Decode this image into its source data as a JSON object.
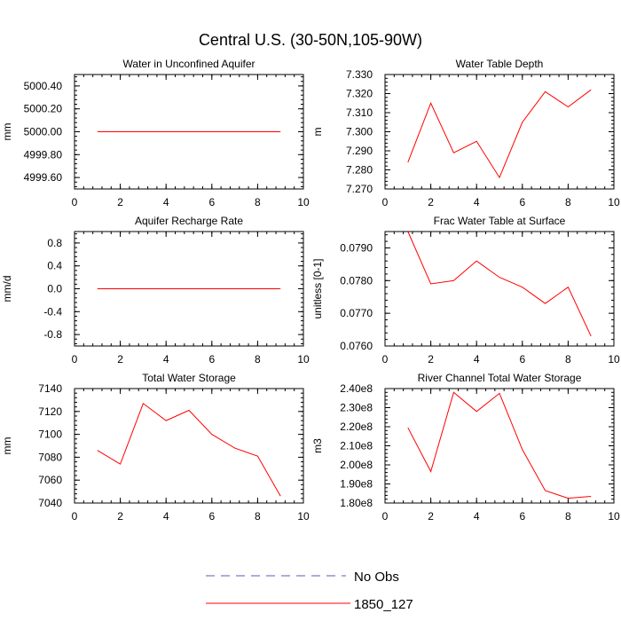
{
  "figure": {
    "title": "Central U.S. (30-50N,105-90W)"
  },
  "legend": {
    "items": [
      {
        "label": "No Obs",
        "color": "#5a5ab4",
        "dash": true
      },
      {
        "label": "1850_127",
        "color": "#ff0000",
        "dash": false
      }
    ]
  },
  "chart_data": [
    {
      "type": "line",
      "title": "Water in Unconfined Aquifer",
      "ylabel": "mm",
      "xlim": [
        0,
        10
      ],
      "xticks": [
        0,
        2,
        4,
        6,
        8,
        10
      ],
      "ylim": [
        4999.5,
        5000.5
      ],
      "yticks": [
        4999.6,
        4999.8,
        5000.0,
        5000.2,
        5000.4
      ],
      "ytick_labels": [
        "4999.60",
        "4999.80",
        "5000.00",
        "5000.20",
        "5000.40"
      ],
      "series": [
        {
          "name": "1850_127",
          "color": "#ff0000",
          "x": [
            1,
            2,
            3,
            4,
            5,
            6,
            7,
            8,
            9
          ],
          "y": [
            5000,
            5000,
            5000,
            5000,
            5000,
            5000,
            5000,
            5000,
            5000
          ]
        }
      ]
    },
    {
      "type": "line",
      "title": "Water Table Depth",
      "ylabel": "m",
      "xlim": [
        0,
        10
      ],
      "xticks": [
        0,
        2,
        4,
        6,
        8,
        10
      ],
      "ylim": [
        7.27,
        7.33
      ],
      "yticks": [
        7.27,
        7.28,
        7.29,
        7.3,
        7.31,
        7.32,
        7.33
      ],
      "ytick_labels": [
        "7.270",
        "7.280",
        "7.290",
        "7.300",
        "7.310",
        "7.320",
        "7.330"
      ],
      "series": [
        {
          "name": "1850_127",
          "color": "#ff0000",
          "x": [
            1,
            2,
            3,
            4,
            5,
            6,
            7,
            8,
            9
          ],
          "y": [
            7.284,
            7.315,
            7.289,
            7.295,
            7.276,
            7.305,
            7.321,
            7.313,
            7.322
          ]
        }
      ]
    },
    {
      "type": "line",
      "title": "Aquifer Recharge Rate",
      "ylabel": "mm/d",
      "xlim": [
        0,
        10
      ],
      "xticks": [
        0,
        2,
        4,
        6,
        8,
        10
      ],
      "ylim": [
        -1.0,
        1.0
      ],
      "yticks": [
        -0.8,
        -0.4,
        0.0,
        0.4,
        0.8
      ],
      "ytick_labels": [
        "-0.8",
        "-0.4",
        "0.0",
        "0.4",
        "0.8"
      ],
      "series": [
        {
          "name": "1850_127",
          "color": "#ff0000",
          "x": [
            1,
            2,
            3,
            4,
            5,
            6,
            7,
            8,
            9
          ],
          "y": [
            0,
            0,
            0,
            0,
            0,
            0,
            0,
            0,
            0
          ]
        }
      ]
    },
    {
      "type": "line",
      "title": "Frac Water Table at Surface",
      "ylabel": "unitless [0-1]",
      "xlim": [
        0,
        10
      ],
      "xticks": [
        0,
        2,
        4,
        6,
        8,
        10
      ],
      "ylim": [
        0.076,
        0.0795
      ],
      "yticks": [
        0.076,
        0.077,
        0.078,
        0.079
      ],
      "ytick_labels": [
        "0.0760",
        "0.0770",
        "0.0780",
        "0.0790"
      ],
      "series": [
        {
          "name": "1850_127",
          "color": "#ff0000",
          "x": [
            1,
            2,
            3,
            4,
            5,
            6,
            7,
            8,
            9
          ],
          "y": [
            0.0795,
            0.0779,
            0.078,
            0.0786,
            0.0781,
            0.0778,
            0.0773,
            0.0778,
            0.0763
          ]
        }
      ]
    },
    {
      "type": "line",
      "title": "Total Water Storage",
      "ylabel": "mm",
      "xlim": [
        0,
        10
      ],
      "xticks": [
        0,
        2,
        4,
        6,
        8,
        10
      ],
      "ylim": [
        7040,
        7140
      ],
      "yticks": [
        7040,
        7060,
        7080,
        7100,
        7120,
        7140
      ],
      "ytick_labels": [
        "7040",
        "7060",
        "7080",
        "7100",
        "7120",
        "7140"
      ],
      "series": [
        {
          "name": "1850_127",
          "color": "#ff0000",
          "x": [
            1,
            2,
            3,
            4,
            5,
            6,
            7,
            8,
            9
          ],
          "y": [
            7086,
            7074,
            7127,
            7112,
            7121,
            7100,
            7088,
            7081,
            7046
          ]
        }
      ]
    },
    {
      "type": "line",
      "title": "River Channel Total Water Storage",
      "ylabel": "m3",
      "xlim": [
        0,
        10
      ],
      "xticks": [
        0,
        2,
        4,
        6,
        8,
        10
      ],
      "ylim": [
        180000000,
        240000000
      ],
      "yticks": [
        180000000,
        190000000,
        200000000,
        210000000,
        220000000,
        230000000,
        240000000
      ],
      "ytick_labels": [
        "1.80e8",
        "1.90e8",
        "2.00e8",
        "2.10e8",
        "2.20e8",
        "2.30e8",
        "2.40e8"
      ],
      "series": [
        {
          "name": "1850_127",
          "color": "#ff0000",
          "x": [
            1,
            2,
            3,
            4,
            5,
            6,
            7,
            8,
            9
          ],
          "y": [
            219500000,
            196500000,
            238000000,
            228000000,
            237500000,
            208000000,
            186500000,
            182500000,
            183500000
          ]
        }
      ]
    }
  ]
}
